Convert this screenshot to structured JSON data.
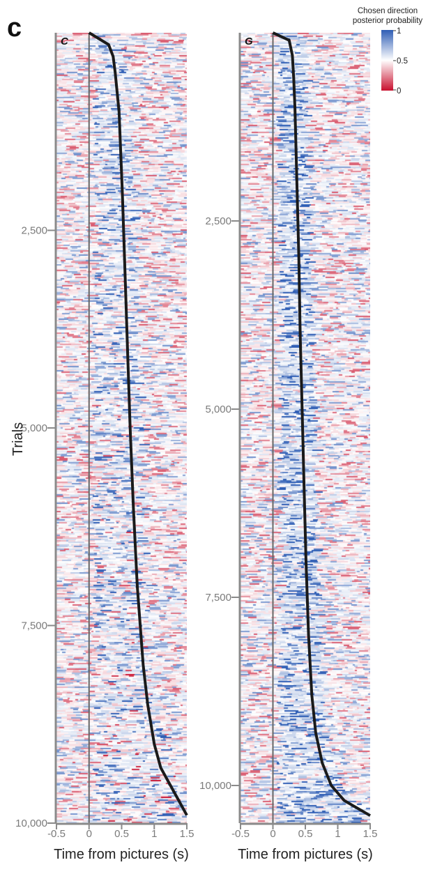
{
  "figure_letter": "c",
  "colorbar": {
    "title_line1": "Chosen direction",
    "title_line2": "posterior probability",
    "ticks": [
      "1",
      "0.5",
      "0"
    ],
    "colors": [
      "#2f5eb5",
      "#ffffff",
      "#c8102e"
    ]
  },
  "chart_data": [
    {
      "type": "heatmap",
      "panel_label": "C",
      "xlabel": "Time from pictures (s)",
      "ylabel": "Trials",
      "xlim": [
        -0.5,
        1.5
      ],
      "ylim": [
        0,
        10000
      ],
      "xticks": [
        "-0.5",
        "0",
        "0.5",
        "1",
        "1.5"
      ],
      "ytick_values": [
        2500,
        5000,
        7500,
        10000
      ],
      "ytick_labels": [
        "2,500",
        "5,000",
        "7,500",
        "10,000"
      ],
      "reaction_time_curve": {
        "trials": [
          0,
          150,
          300,
          500,
          1000,
          2000,
          3000,
          4000,
          5000,
          6000,
          7000,
          8000,
          8500,
          9000,
          9300,
          9600,
          9900
        ],
        "times": [
          0.0,
          0.3,
          0.37,
          0.4,
          0.46,
          0.51,
          0.55,
          0.59,
          0.63,
          0.68,
          0.74,
          0.83,
          0.9,
          1.0,
          1.1,
          1.3,
          1.5
        ]
      }
    },
    {
      "type": "heatmap",
      "panel_label": "G",
      "xlabel": "Time from pictures (s)",
      "ylabel": "",
      "xlim": [
        -0.5,
        1.5
      ],
      "ylim": [
        0,
        10500
      ],
      "xticks": [
        "-0.5",
        "0",
        "0.5",
        "1",
        "1.5"
      ],
      "ytick_values": [
        2500,
        5000,
        7500,
        10000
      ],
      "ytick_labels": [
        "2,500",
        "5,000",
        "7,500",
        "10,000"
      ],
      "reaction_time_curve": {
        "trials": [
          0,
          100,
          300,
          600,
          1000,
          2000,
          3000,
          4000,
          5000,
          6000,
          7000,
          8000,
          8800,
          9300,
          9700,
          10000,
          10200,
          10400
        ],
        "times": [
          0.0,
          0.25,
          0.3,
          0.32,
          0.34,
          0.37,
          0.4,
          0.42,
          0.45,
          0.48,
          0.51,
          0.55,
          0.6,
          0.66,
          0.76,
          0.9,
          1.1,
          1.5
        ]
      }
    }
  ]
}
